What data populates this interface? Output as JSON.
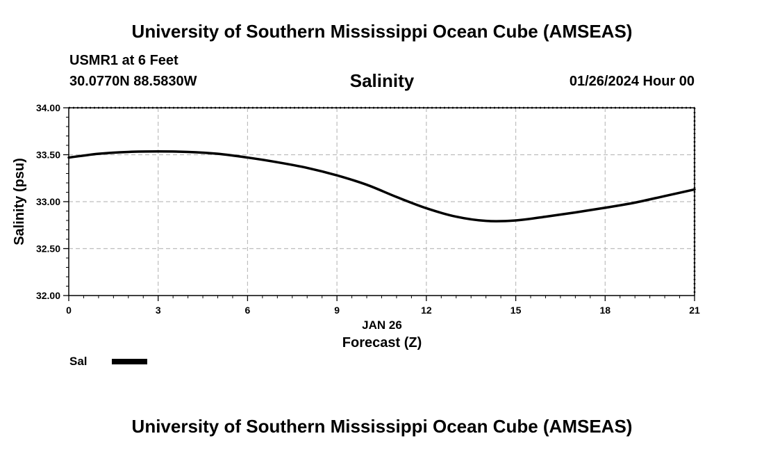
{
  "header": {
    "title": "University of Southern Mississippi Ocean Cube (AMSEAS)",
    "station": "USMR1 at 6 Feet",
    "coords": "30.0770N  88.5830W",
    "parameter": "Salinity",
    "datetime": "01/26/2024 Hour 00"
  },
  "footer": {
    "title": "University of Southern Mississippi Ocean Cube (AMSEAS)"
  },
  "legend": {
    "label": "Sal",
    "color": "#000000"
  },
  "chart_data": {
    "type": "line",
    "title": "Salinity",
    "xlabel": "Forecast (Z)",
    "xsublabel": "JAN 26",
    "ylabel": "Salinity (psu)",
    "xlim": [
      0,
      21
    ],
    "ylim": [
      32.0,
      34.0
    ],
    "xticks": [
      "0",
      "3",
      "6",
      "9",
      "12",
      "15",
      "18",
      "21"
    ],
    "xtick_values": [
      0,
      3,
      6,
      9,
      12,
      15,
      18,
      21
    ],
    "yticks": [
      "32.00",
      "32.50",
      "33.00",
      "33.50",
      "34.00"
    ],
    "ytick_values": [
      32.0,
      32.5,
      33.0,
      33.5,
      34.0
    ],
    "grid": true,
    "series": [
      {
        "name": "Sal",
        "x": [
          0,
          1,
          2,
          3,
          4,
          5,
          6,
          7,
          8,
          9,
          10,
          11,
          12,
          13,
          14,
          15,
          16,
          17,
          18,
          19,
          20,
          21
        ],
        "y": [
          33.47,
          33.51,
          33.53,
          33.535,
          33.53,
          33.51,
          33.47,
          33.42,
          33.36,
          33.28,
          33.18,
          33.05,
          32.93,
          32.84,
          32.795,
          32.8,
          32.84,
          32.885,
          32.935,
          32.99,
          33.06,
          33.13
        ]
      }
    ]
  }
}
